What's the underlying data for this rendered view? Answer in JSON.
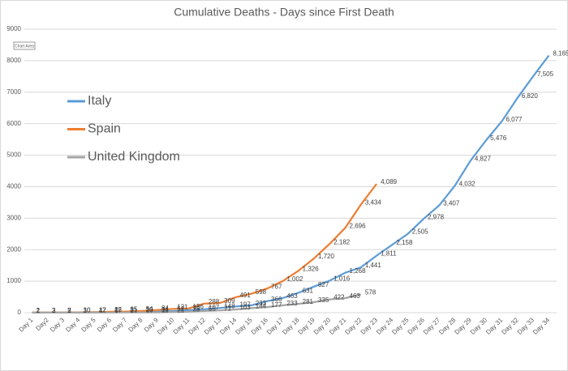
{
  "chart_data": {
    "type": "line",
    "title": "Cumulative Deaths - Days since First Death",
    "tooltip": "Chart Area",
    "categories": [
      "Day 1",
      "Day2",
      "Day 3",
      "Day 4",
      "Day 5",
      "Day 6",
      "Day 7",
      "Day 8",
      "Day 9",
      "Day 10",
      "Day 11",
      "Day 12",
      "Day 13",
      "Day 14",
      "Day 15",
      "Day 16",
      "Day 17",
      "Day 18",
      "Day 19",
      "Day 20",
      "Day 21",
      "Day 22",
      "Day 23",
      "Day 24",
      "Day 25",
      "Day 26",
      "Day 27",
      "Day 28",
      "Day 29",
      "Day 30",
      "Day 31",
      "Day 32",
      "Day 33",
      "Day 34"
    ],
    "series": [
      {
        "name": "Italy",
        "color": "#5b9bd5",
        "values": [
          2,
          3,
          7,
          10,
          12,
          17,
          21,
          29,
          34,
          52,
          79,
          107,
          148,
          197,
          233,
          366,
          463,
          631,
          827,
          1016,
          1268,
          1441,
          1811,
          2158,
          2505,
          2978,
          3407,
          4032,
          4827,
          5476,
          6077,
          6820,
          7505,
          8165
        ],
        "value_labels": [
          "2",
          "3",
          "7",
          "10",
          "12",
          "17",
          "21",
          "29",
          "34",
          "52",
          "79",
          "107",
          "148",
          "197",
          "233",
          "366",
          "463",
          "631",
          "827",
          "1,016",
          "1,268",
          "1,441",
          "1,811",
          "2,158",
          "2,505",
          "2,978",
          "3,407",
          "4,032",
          "4,827",
          "5,476",
          "6,077",
          "6,820",
          "7,505",
          "8,165"
        ]
      },
      {
        "name": "Spain",
        "color": "#ed7d31",
        "values": [
          2,
          3,
          5,
          10,
          17,
          28,
          35,
          54,
          84,
          121,
          136,
          288,
          309,
          491,
          598,
          767,
          1002,
          1326,
          1720,
          2182,
          2696,
          3434,
          4089,
          null,
          null,
          null,
          null,
          null,
          null,
          null,
          null,
          null,
          null,
          null
        ],
        "value_labels": [
          "2",
          "3",
          "5",
          "10",
          "17",
          "28",
          "35",
          "54",
          "84",
          "121",
          "136",
          "288",
          "309",
          "491",
          "598",
          "767",
          "1,002",
          "1,326",
          "1,720",
          "2,182",
          "2,696",
          "3,434",
          "4,089",
          null,
          null,
          null,
          null,
          null,
          null,
          null,
          null,
          null,
          null,
          null
        ]
      },
      {
        "name": "United Kingdom",
        "color": "#a5a5a5",
        "values": [
          1,
          2,
          2,
          3,
          4,
          6,
          8,
          10,
          11,
          21,
          35,
          55,
          71,
          103,
          144,
          177,
          233,
          281,
          335,
          422,
          463,
          578,
          null,
          null,
          null,
          null,
          null,
          null,
          null,
          null,
          null,
          null,
          null,
          null
        ],
        "value_labels": [
          "1",
          "2",
          "2",
          "3",
          "4",
          "6",
          "8",
          "10",
          "11",
          "21",
          "35",
          "55",
          "71",
          "103",
          "144",
          "177",
          "233",
          "281",
          "335",
          "422",
          "463",
          "578",
          null,
          null,
          null,
          null,
          null,
          null,
          null,
          null,
          null,
          null,
          null,
          null
        ]
      }
    ],
    "ylim": [
      0,
      9000
    ],
    "yticks": [
      0,
      1000,
      2000,
      3000,
      4000,
      5000,
      6000,
      7000,
      8000,
      9000
    ],
    "grid": true,
    "legend": "left"
  }
}
